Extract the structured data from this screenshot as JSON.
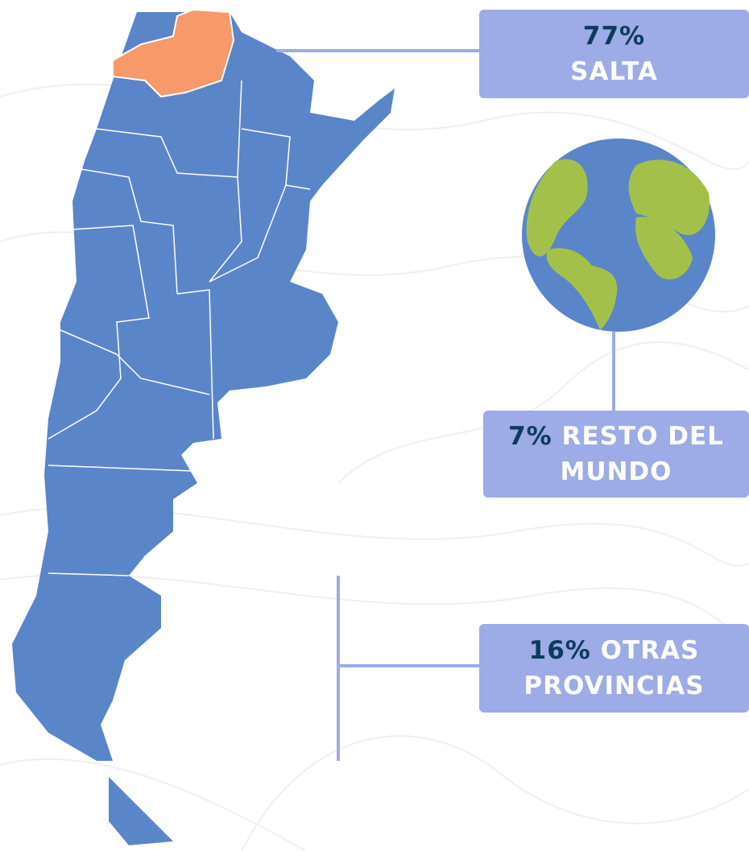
{
  "callouts": [
    {
      "percent": "77%",
      "label": "SALTA"
    },
    {
      "percent": "7%",
      "label": "RESTO DEL MUNDO"
    },
    {
      "percent": "16%",
      "label": "OTRAS PROVINCIAS"
    }
  ]
}
